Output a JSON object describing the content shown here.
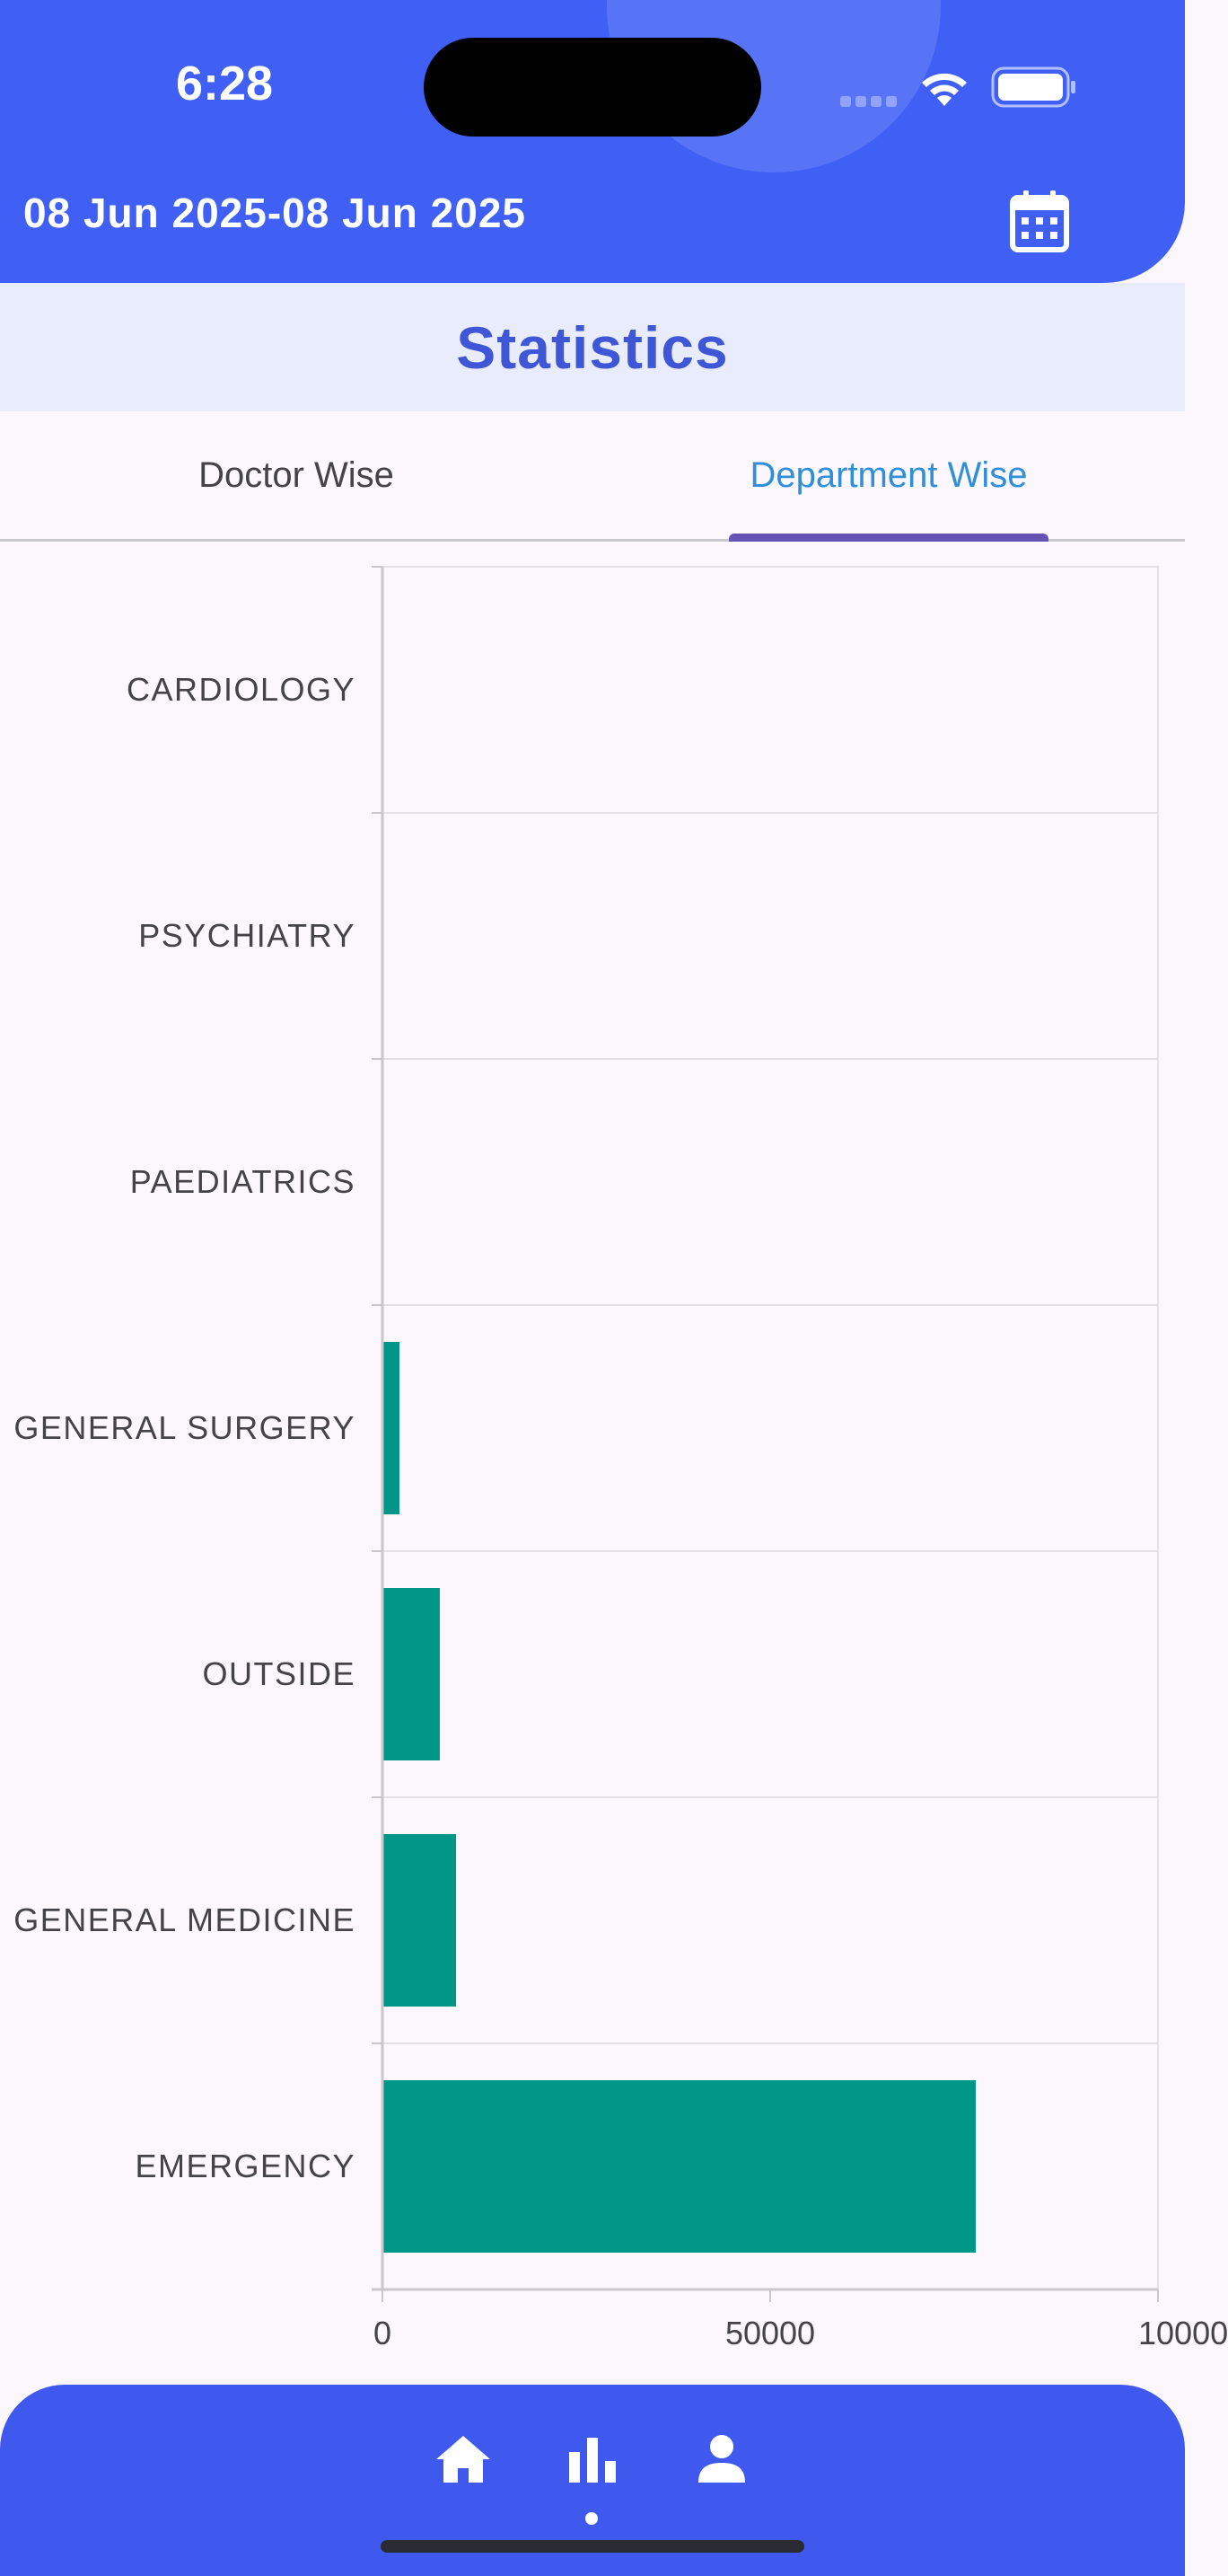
{
  "status_bar": {
    "time": "6:28"
  },
  "header": {
    "date_range": "08 Jun 2025-08 Jun 2025",
    "icon": "calendar-icon"
  },
  "page": {
    "title": "Statistics"
  },
  "tabs": [
    {
      "label": "Doctor Wise",
      "selected": false
    },
    {
      "label": "Department Wise",
      "selected": true
    }
  ],
  "colors": {
    "accent": "#4060f5",
    "bar": "#009688",
    "tab_selected": "#2f8fd8",
    "indicator": "#6453b5"
  },
  "chart_data": {
    "type": "bar",
    "orientation": "horizontal",
    "categories": [
      "CARDIOLOGY",
      "PSYCHIATRY",
      "PAEDIATRICS",
      "GENERAL SURGERY",
      "OUTSIDE",
      "GENERAL MEDICINE",
      "EMERGENCY"
    ],
    "values": [
      0,
      0,
      0,
      2200,
      7400,
      9500,
      76500
    ],
    "xlim": [
      0,
      100000
    ],
    "xticks": [
      "0",
      "50000",
      "10000"
    ],
    "title": "",
    "xlabel": "",
    "ylabel": "",
    "grid": true
  },
  "bottom_nav": {
    "items": [
      {
        "icon": "home-icon"
      },
      {
        "icon": "bar-chart-icon"
      },
      {
        "icon": "person-icon"
      }
    ]
  }
}
